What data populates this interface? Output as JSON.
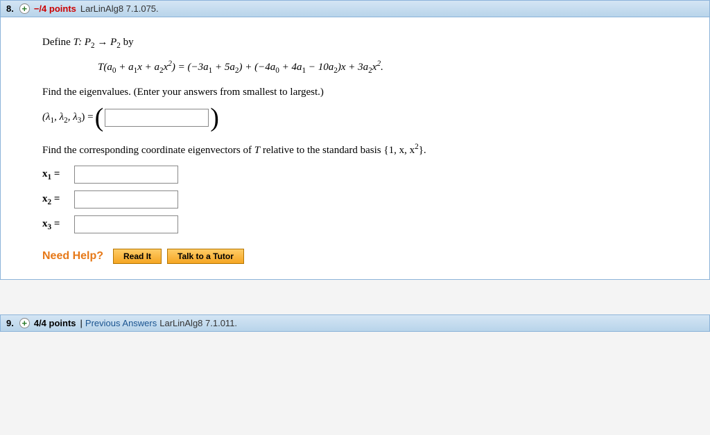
{
  "q8": {
    "number": "8.",
    "points": "−/4 points",
    "source": "LarLinAlg8 7.1.075.",
    "define_line_pre": "Define ",
    "define_map": "T: P",
    "define_sub1": "2",
    "define_arrow": " → P",
    "define_sub2": "2",
    "define_by": " by",
    "formula_T": "T(a",
    "f_a0s": "0",
    "f_plus1": " + a",
    "f_a1s": "1",
    "f_x1": "x + a",
    "f_a2s": "2",
    "f_x2": "x",
    "f_sq1": "2",
    "f_close_eq": ") = (−3a",
    "f_3a1s": "1",
    "f_p5a2": " + 5a",
    "f_5a2s": "2",
    "f_cp1": ") + (−4a",
    "f_4a0s": "0",
    "f_p4a1": " + 4a",
    "f_4a1s": "1",
    "f_m10a2": " − 10a",
    "f_10a2s": "2",
    "f_cx": ")x + 3a",
    "f_3a2s": "2",
    "f_xend": "x",
    "f_sq2": "2",
    "f_dot": ".",
    "find_eigen": "Find the eigenvalues. (Enter your answers from smallest to largest.)",
    "lambda_label_pre": "(λ",
    "l1s": "1",
    "lc1": ", λ",
    "l2s": "2",
    "lc2": ", λ",
    "l3s": "3",
    "lambda_label_post": ") = ",
    "find_vectors_pre": "Find the corresponding coordinate eigenvectors of ",
    "find_vectors_T": "T",
    "find_vectors_mid": " relative to the standard basis  {1, x, x",
    "basis_sup": "2",
    "find_vectors_post": "}.",
    "x1_lbl_b": "x",
    "x1_s": "1",
    "eq": "  =",
    "x2_s": "2",
    "x3_s": "3",
    "need_help": "Need Help?",
    "read_it": "Read It",
    "tutor": "Talk to a Tutor"
  },
  "q9": {
    "number": "9.",
    "points": "4/4 points",
    "sep": "  |  ",
    "prev": "Previous Answers",
    "source": "LarLinAlg8 7.1.011."
  },
  "colors": {
    "header_bg_top": "#d4e5f4",
    "header_bg_bottom": "#b8d4ea",
    "header_border": "#8cb3d9",
    "need_help_color": "#e67817",
    "button_bg_top": "#ffcc66",
    "button_bg_bottom": "#f5a623",
    "button_border": "#b37400",
    "link_color": "#1a5490",
    "neg_points": "#c00"
  }
}
